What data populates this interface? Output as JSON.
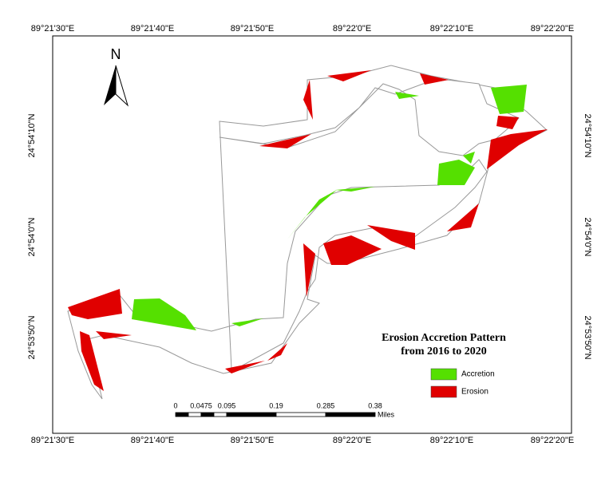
{
  "map": {
    "north_label": "N",
    "top_labels": [
      "89°21'30\"E",
      "89°21'40\"E",
      "89°21'50\"E",
      "89°22'0\"E",
      "89°22'10\"E",
      "89°22'20\"E"
    ],
    "bottom_labels": [
      "89°21'30\"E",
      "89°21'40\"E",
      "89°21'50\"E",
      "89°22'0\"E",
      "89°22'10\"E",
      "89°22'20\"E"
    ],
    "left_labels": [
      "24°54'10\"N",
      "24°54'0\"N",
      "24°53'50\"N"
    ],
    "right_labels": [
      "24°54'10\"N",
      "24°54'0\"N",
      "24°53'50\"N"
    ],
    "title": [
      "Erosion Accretion Pattern",
      "from 2016 to 2020"
    ],
    "legend": [
      {
        "label": "Accretion",
        "color": "#55e000"
      },
      {
        "label": "Erosion",
        "color": "#e00000"
      }
    ],
    "scale": {
      "labels": [
        "0",
        "0.0475",
        "0.095",
        "0.19",
        "0.285",
        "0.38"
      ],
      "unit": "Miles"
    }
  }
}
